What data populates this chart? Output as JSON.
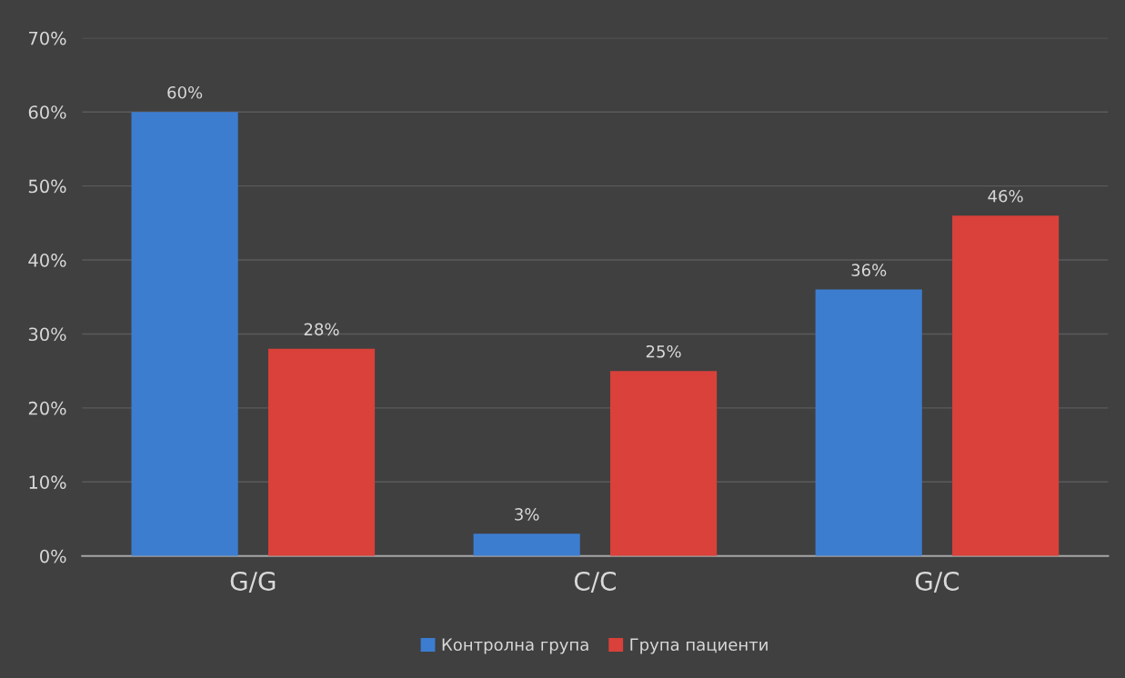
{
  "chart_data": {
    "type": "bar",
    "categories": [
      "G/G",
      "C/C",
      "G/C"
    ],
    "series": [
      {
        "name": "Контролна група",
        "color": "#3c7dd0",
        "values": [
          60,
          3,
          36
        ],
        "value_labels": [
          "60%",
          "3%",
          "36%"
        ]
      },
      {
        "name": "Група пациенти",
        "color": "#d9413a",
        "values": [
          28,
          25,
          46
        ],
        "value_labels": [
          "28%",
          "25%",
          "46%"
        ]
      }
    ],
    "ylim": [
      0,
      70
    ],
    "yticks": [
      {
        "value": 0,
        "label": "0%"
      },
      {
        "value": 10,
        "label": "10%"
      },
      {
        "value": 20,
        "label": "20%"
      },
      {
        "value": 30,
        "label": "30%"
      },
      {
        "value": 40,
        "label": "40%"
      },
      {
        "value": 50,
        "label": "50%"
      },
      {
        "value": 60,
        "label": "60%"
      },
      {
        "value": 70,
        "label": "70%"
      }
    ],
    "grid": "y",
    "legend": "bottom"
  }
}
